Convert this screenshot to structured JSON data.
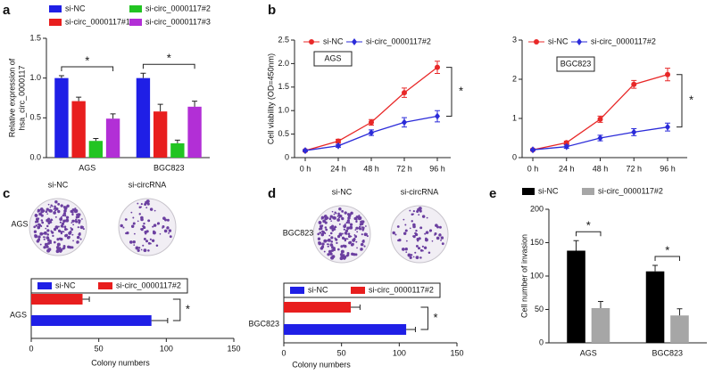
{
  "chart_data": [
    {
      "panel": "a",
      "type": "bar",
      "ylabel": [
        "Relative expression of",
        "hsa_circ_0000117"
      ],
      "categories": [
        "AGS",
        "BGC823"
      ],
      "series": [
        {
          "name": "si-NC",
          "color": "#1f1fe6",
          "values": [
            1.0,
            1.0
          ],
          "errors": [
            0.03,
            0.06
          ]
        },
        {
          "name": "si-circ_0000117#1",
          "color": "#e81e1e",
          "values": [
            0.71,
            0.58
          ],
          "errors": [
            0.05,
            0.09
          ]
        },
        {
          "name": "si-circ_0000117#2",
          "color": "#22c422",
          "values": [
            0.21,
            0.18
          ],
          "errors": [
            0.03,
            0.04
          ]
        },
        {
          "name": "si-circ_0000117#3",
          "color": "#b22fd6",
          "values": [
            0.49,
            0.64
          ],
          "errors": [
            0.06,
            0.07
          ]
        }
      ],
      "ylim": [
        0,
        1.5
      ],
      "yticks": [
        {
          "value": 0,
          "label": "0.0"
        },
        0.5,
        {
          "value": 1,
          "label": "1.0"
        },
        1.5
      ],
      "annotations": [
        "*",
        "*"
      ]
    },
    {
      "panel": "b",
      "type": "line",
      "ylabel": "Cell viability (OD=450nm)",
      "box_label": "AGS",
      "categories": [
        "0 h",
        "24 h",
        "48 h",
        "72 h",
        "96 h"
      ],
      "series": [
        {
          "name": "si-NC",
          "color": "#e82828",
          "values": [
            0.15,
            0.35,
            0.75,
            1.38,
            1.92
          ],
          "errors": [
            0.02,
            0.04,
            0.06,
            0.1,
            0.13
          ]
        },
        {
          "name": "si-circ_0000117#2",
          "color": "#2b2bd9",
          "values": [
            0.15,
            0.25,
            0.53,
            0.75,
            0.88
          ],
          "errors": [
            0.02,
            0.03,
            0.06,
            0.1,
            0.12
          ]
        }
      ],
      "ylim": [
        0,
        2.5
      ],
      "yticks": [
        0,
        0.5,
        {
          "value": 1,
          "label": "1.0"
        },
        1.5,
        {
          "value": 2,
          "label": "2.0"
        },
        2.5
      ],
      "annotations": [
        "*"
      ]
    },
    {
      "type": "line",
      "box_label": "BGC823",
      "categories": [
        "0 h",
        "24 h",
        "48 h",
        "72 h",
        "96 h"
      ],
      "series": [
        {
          "name": "si-NC",
          "color": "#e82828",
          "values": [
            0.2,
            0.38,
            0.98,
            1.87,
            2.12
          ],
          "errors": [
            0.02,
            0.04,
            0.08,
            0.1,
            0.16
          ]
        },
        {
          "name": "si-circ_0000117#2",
          "color": "#2b2bd9",
          "values": [
            0.2,
            0.28,
            0.5,
            0.65,
            0.78
          ],
          "errors": [
            0.02,
            0.04,
            0.07,
            0.09,
            0.1
          ]
        }
      ],
      "ylim": [
        0,
        3
      ],
      "yticks": [
        0,
        1,
        2,
        3
      ],
      "annotations": [
        "*"
      ]
    },
    {
      "panel": "c",
      "type": "barh",
      "images": [
        "si-NC",
        "si-circRNA"
      ],
      "image_label": "AGS",
      "categories": [
        "AGS"
      ],
      "series": [
        {
          "name": "si-NC",
          "color": "#1f1fe6",
          "values": [
            89
          ],
          "errors": [
            12
          ]
        },
        {
          "name": "si-circ_0000117#2",
          "color": "#e81e1e",
          "values": [
            38
          ],
          "errors": [
            5
          ]
        }
      ],
      "xlim": [
        0,
        150
      ],
      "xticks": [
        0,
        50,
        100,
        150
      ],
      "xlabel": "Colony numbers",
      "annotations": [
        "*"
      ]
    },
    {
      "panel": "d",
      "type": "barh",
      "images": [
        "si-NC",
        "si-circRNA"
      ],
      "image_label": "BGC823",
      "categories": [
        "BGC823"
      ],
      "series": [
        {
          "name": "si-NC",
          "color": "#1f1fe6",
          "values": [
            106
          ],
          "errors": [
            8
          ]
        },
        {
          "name": "si-circ_0000117#2",
          "color": "#e81e1e",
          "values": [
            58
          ],
          "errors": [
            8
          ]
        }
      ],
      "xlim": [
        0,
        150
      ],
      "xticks": [
        0,
        50,
        100,
        150
      ],
      "xlabel": "Colony numbers",
      "annotations": [
        "*"
      ]
    },
    {
      "panel": "e",
      "type": "bar",
      "ylabel": "Cell number of invasion",
      "categories": [
        "AGS",
        "BGC823"
      ],
      "series": [
        {
          "name": "si-NC",
          "color": "#000000",
          "values": [
            138,
            107
          ],
          "errors": [
            15,
            9
          ]
        },
        {
          "name": "si-circ_0000117#2",
          "color": "#a6a6a6",
          "values": [
            52,
            41
          ],
          "errors": [
            10,
            10
          ]
        }
      ],
      "ylim": [
        0,
        200
      ],
      "yticks": [
        0,
        50,
        100,
        150,
        200
      ],
      "annotations": [
        "*",
        "*"
      ]
    }
  ]
}
